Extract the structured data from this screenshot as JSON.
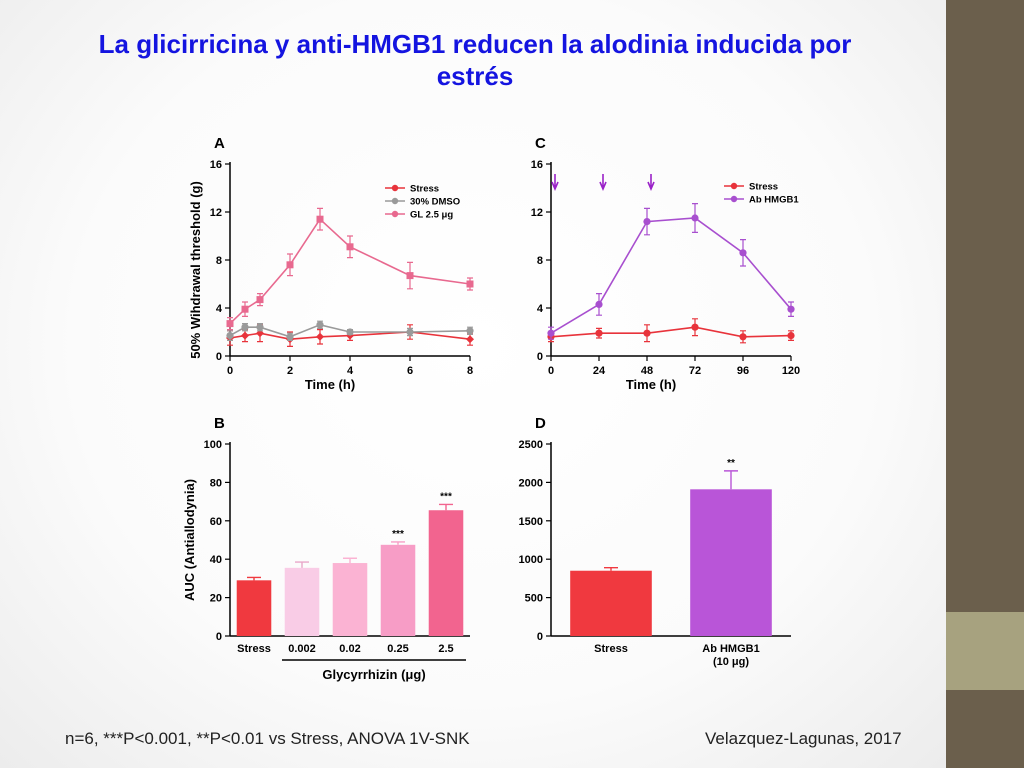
{
  "title": "La glicirricina y anti-HMGB1 reducen la alodinia inducida por estrés",
  "footnote": "n=6, ***P<0.001, **P<0.01 vs Stress, ANOVA 1V-SNK",
  "citation": "Velazquez-Lagunas, 2017",
  "colors": {
    "stress": "#e8333b",
    "dmso": "#9a9a9a",
    "gl": "#e8698f",
    "ab": "#a84fcf",
    "arrow": "#9a22c8",
    "title": "#1414e0",
    "sidebar_dark": "#6b5f4c",
    "sidebar_light": "#a7a27f"
  },
  "chart_data": [
    {
      "panel": "A",
      "type": "line",
      "xlabel": "Time (h)",
      "ylabel": "50% Wihdrawal threshold (g)",
      "xlim": [
        0,
        8
      ],
      "ylim": [
        0,
        16
      ],
      "xticks": [
        0,
        2,
        4,
        6,
        8
      ],
      "yticks": [
        0,
        4,
        8,
        12,
        16
      ],
      "legend_position": "top-right",
      "series": [
        {
          "name": "Stress",
          "color": "#e8333b",
          "marker": "diamond",
          "x": [
            0,
            0.5,
            1,
            2,
            3,
            4,
            6,
            8
          ],
          "y": [
            1.5,
            1.7,
            1.9,
            1.4,
            1.6,
            1.7,
            2.0,
            1.4
          ],
          "err": [
            0.6,
            0.5,
            0.7,
            0.6,
            0.6,
            0.4,
            0.6,
            0.5
          ]
        },
        {
          "name": "30% DMSO",
          "color": "#9a9a9a",
          "marker": "circle",
          "x": [
            0,
            0.5,
            1,
            2,
            3,
            4,
            6,
            8
          ],
          "y": [
            1.7,
            2.4,
            2.4,
            1.6,
            2.6,
            2.0,
            2.0,
            2.1
          ],
          "err": [
            0.4,
            0.3,
            0.3,
            0.3,
            0.3,
            0.2,
            0.3,
            0.3
          ]
        },
        {
          "name": "GL 2.5 μg",
          "color": "#e8698f",
          "marker": "square",
          "x": [
            0,
            0.5,
            1,
            2,
            3,
            4,
            6,
            8
          ],
          "y": [
            2.7,
            3.9,
            4.7,
            7.6,
            11.4,
            9.1,
            6.7,
            6.0
          ],
          "err": [
            0.5,
            0.6,
            0.5,
            0.9,
            0.9,
            0.9,
            1.1,
            0.5
          ]
        }
      ]
    },
    {
      "panel": "B",
      "type": "bar",
      "xlabel": "Glycyrrhizin (μg)",
      "ylabel": "AUC (Antiallodynia)",
      "ylim": [
        0,
        100
      ],
      "yticks": [
        0,
        20,
        40,
        60,
        80,
        100
      ],
      "categories": [
        "Stress",
        "0.002",
        "0.02",
        "0.25",
        "2.5"
      ],
      "values": [
        29,
        35.5,
        38,
        47.5,
        65.5
      ],
      "err": [
        1.5,
        3,
        2.5,
        1.5,
        3
      ],
      "colors": [
        "#f0393f",
        "#f9cce6",
        "#fbb3d3",
        "#f79dc6",
        "#f2648f"
      ],
      "significance": [
        "",
        "",
        "",
        "***",
        "***"
      ]
    },
    {
      "panel": "C",
      "type": "line",
      "xlabel": "Time (h)",
      "xlim": [
        0,
        120
      ],
      "ylim": [
        0,
        16
      ],
      "xticks": [
        0,
        24,
        48,
        72,
        96,
        120
      ],
      "yticks": [
        0,
        4,
        8,
        12,
        16
      ],
      "legend_position": "top-right",
      "arrows_at": [
        0,
        24,
        48
      ],
      "series": [
        {
          "name": "Stress",
          "color": "#e8333b",
          "marker": "circle",
          "x": [
            0,
            24,
            48,
            72,
            96,
            120
          ],
          "y": [
            1.6,
            1.9,
            1.9,
            2.4,
            1.6,
            1.7
          ],
          "err": [
            0.4,
            0.4,
            0.7,
            0.7,
            0.5,
            0.4
          ]
        },
        {
          "name": "Ab HMGB1",
          "color": "#a84fcf",
          "marker": "circle",
          "x": [
            0,
            24,
            48,
            72,
            96,
            120
          ],
          "y": [
            1.9,
            4.3,
            11.2,
            11.5,
            8.6,
            3.9
          ],
          "err": [
            0.5,
            0.9,
            1.1,
            1.2,
            1.1,
            0.6
          ]
        }
      ]
    },
    {
      "panel": "D",
      "type": "bar",
      "ylim": [
        0,
        2500
      ],
      "yticks": [
        0,
        500,
        1000,
        1500,
        2000,
        2500
      ],
      "categories": [
        "Stress",
        "Ab HMGB1"
      ],
      "sublabels": [
        "",
        "(10 μg)"
      ],
      "values": [
        850,
        1910
      ],
      "err": [
        40,
        240
      ],
      "colors": [
        "#f0393f",
        "#b955d8"
      ],
      "significance": [
        "",
        "**"
      ]
    }
  ]
}
